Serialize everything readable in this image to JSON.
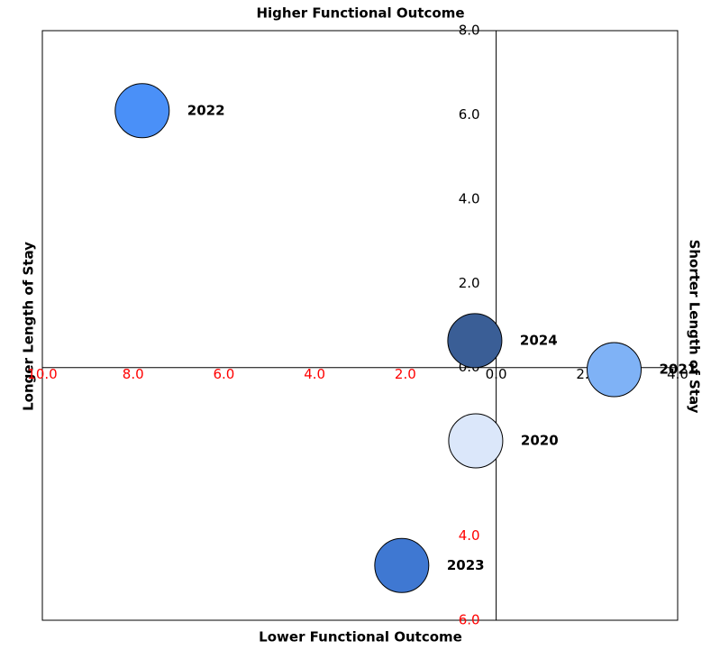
{
  "chart_data": {
    "type": "scatter",
    "title_top": "Higher Functional Outcome",
    "title_bottom": "Lower Functional Outcome",
    "title_left": "Longer Length of Stay",
    "title_right": "Shorter Length of Stay",
    "points": [
      {
        "label": "2022",
        "x": -7.8,
        "y": 6.1,
        "color": "#4a90f8"
      },
      {
        "label": "2024",
        "x": -0.47,
        "y": 0.64,
        "color": "#3a5e96"
      },
      {
        "label": "2021",
        "x": 2.6,
        "y": -0.05,
        "color": "#7fb2f6"
      },
      {
        "label": "2020",
        "x": -0.45,
        "y": -1.74,
        "color": "#dbe7fa"
      },
      {
        "label": "2023",
        "x": -2.08,
        "y": -4.7,
        "color": "#3f78d2"
      }
    ],
    "xlim": [
      -10,
      4
    ],
    "xticks": [
      {
        "value": -10,
        "label": "10.0"
      },
      {
        "value": -8,
        "label": "8.0"
      },
      {
        "value": -6,
        "label": "6.0"
      },
      {
        "value": -4,
        "label": "4.0"
      },
      {
        "value": -2,
        "label": "2.0"
      },
      {
        "value": 0,
        "label": "0.0"
      },
      {
        "value": 2,
        "label": "2.0"
      },
      {
        "value": 4,
        "label": "4.0"
      }
    ],
    "ylim": [
      -6,
      8
    ],
    "yticks": [
      {
        "value": 8,
        "label": "8.0"
      },
      {
        "value": 6,
        "label": "6.0"
      },
      {
        "value": 4,
        "label": "4.0"
      },
      {
        "value": 2,
        "label": "2.0"
      },
      {
        "value": 0,
        "label": "0.0"
      },
      {
        "value": -2,
        "label": "2.0"
      },
      {
        "value": -4,
        "label": "4.0"
      },
      {
        "value": -6,
        "label": "6.0"
      }
    ],
    "negative_tick_color": "#ff0000"
  }
}
